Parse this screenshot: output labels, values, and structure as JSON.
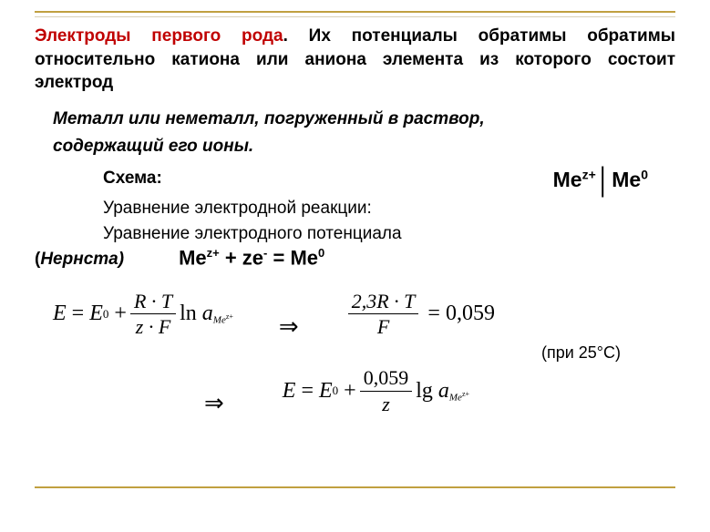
{
  "colors": {
    "accent_line": "#c0a040",
    "title_red": "#c00000",
    "text": "#000000",
    "background": "#ffffff"
  },
  "heading": {
    "red_part": "Электроды первого рода",
    "rest": ". Их потенциалы обратимы обратимы относительно катиона или аниона элемента из которого состоит электрод"
  },
  "sub1": "Металл или неметалл, погруженный в раствор,",
  "sub2": "содержащий его ионы.",
  "scheme_label": "Схема:",
  "scheme_notation": {
    "left_base": "Me",
    "left_sup": "z+",
    "separator": "│",
    "right_base": "Me",
    "right_sup": "0"
  },
  "line_reaction": "Уравнение электродной реакции:",
  "line_potential": "Уравнение электродного потенциала",
  "nernst_open": "(",
  "nernst_label": "Нернста)",
  "reaction": {
    "lhs1_base": "Me",
    "lhs1_sup": "z+",
    "plus": " + ",
    "lhs2_base": "ze",
    "lhs2_sup": "-",
    "eq": "  =  ",
    "rhs_base": "Me",
    "rhs_sup": "0"
  },
  "equation1": {
    "frac_num": "R · T",
    "frac_den": "z · F",
    "ln": "ln",
    "activity_base": "a",
    "activity_sub_base": "Me",
    "activity_sub_sup": "z+"
  },
  "equation2": {
    "frac_num": "2,3R · T",
    "frac_den": "F",
    "value": "0,059"
  },
  "arrow": "⇒",
  "temp_note": "(при 25°С)",
  "equation3": {
    "frac_num": "0,059",
    "frac_den": "z",
    "lg": "lg",
    "activity_base": "a",
    "activity_sub_base": "Me",
    "activity_sub_sup": "z+"
  },
  "symbols": {
    "E": "E",
    "E0_sup": "0",
    "eq": "=",
    "plus": "+"
  }
}
